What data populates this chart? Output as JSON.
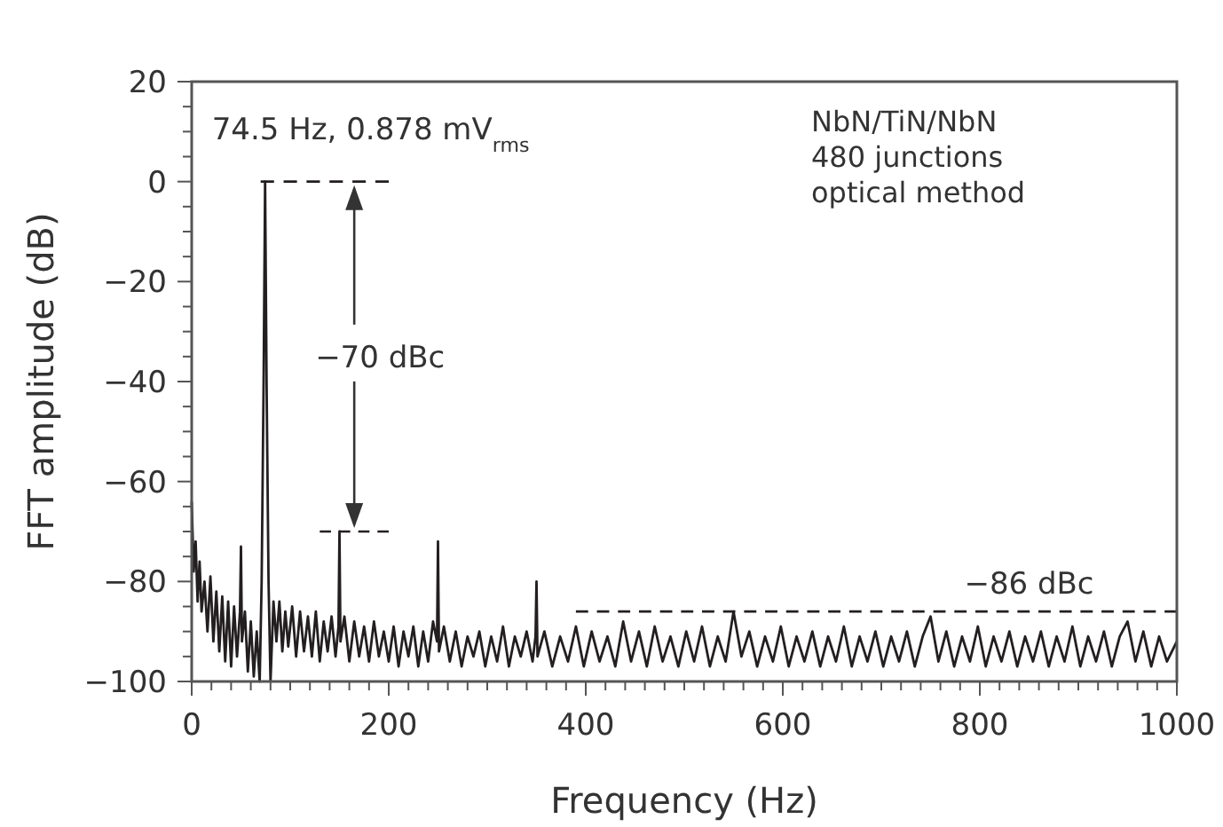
{
  "chart_data": {
    "type": "line",
    "xlabel": "Frequency (Hz)",
    "ylabel": "FFT amplitude (dB)",
    "xlim": [
      0,
      1000
    ],
    "ylim": [
      -100,
      20
    ],
    "xticks": [
      0,
      {
        "value": 20,
        "label": null
      },
      {
        "value": 40,
        "label": null
      },
      {
        "value": 60,
        "label": null
      },
      {
        "value": 80,
        "label": null
      },
      {
        "value": 100,
        "label": null
      },
      {
        "value": 120,
        "label": null
      },
      {
        "value": 140,
        "label": null
      },
      {
        "value": 160,
        "label": null
      },
      {
        "value": 180,
        "label": null
      },
      200,
      {
        "value": 220,
        "label": null
      },
      {
        "value": 240,
        "label": null
      },
      {
        "value": 260,
        "label": null
      },
      {
        "value": 280,
        "label": null
      },
      {
        "value": 300,
        "label": null
      },
      {
        "value": 320,
        "label": null
      },
      {
        "value": 340,
        "label": null
      },
      {
        "value": 360,
        "label": null
      },
      {
        "value": 380,
        "label": null
      },
      400,
      {
        "value": 420,
        "label": null
      },
      {
        "value": 440,
        "label": null
      },
      {
        "value": 460,
        "label": null
      },
      {
        "value": 480,
        "label": null
      },
      {
        "value": 500,
        "label": null
      },
      {
        "value": 520,
        "label": null
      },
      {
        "value": 540,
        "label": null
      },
      {
        "value": 560,
        "label": null
      },
      {
        "value": 580,
        "label": null
      },
      600,
      {
        "value": 620,
        "label": null
      },
      {
        "value": 640,
        "label": null
      },
      {
        "value": 660,
        "label": null
      },
      {
        "value": 680,
        "label": null
      },
      {
        "value": 700,
        "label": null
      },
      {
        "value": 720,
        "label": null
      },
      {
        "value": 740,
        "label": null
      },
      {
        "value": 760,
        "label": null
      },
      {
        "value": 780,
        "label": null
      },
      800,
      {
        "value": 820,
        "label": null
      },
      {
        "value": 840,
        "label": null
      },
      {
        "value": 860,
        "label": null
      },
      {
        "value": 880,
        "label": null
      },
      {
        "value": 900,
        "label": null
      },
      {
        "value": 920,
        "label": null
      },
      {
        "value": 940,
        "label": null
      },
      {
        "value": 960,
        "label": null
      },
      {
        "value": 980,
        "label": null
      },
      1000
    ],
    "yticks": [
      {
        "value": -100,
        "label": "−100"
      },
      {
        "value": -95,
        "label": null
      },
      {
        "value": -90,
        "label": null
      },
      {
        "value": -85,
        "label": null
      },
      {
        "value": -80,
        "label": "−80"
      },
      {
        "value": -75,
        "label": null
      },
      {
        "value": -70,
        "label": null
      },
      {
        "value": -65,
        "label": null
      },
      {
        "value": -60,
        "label": "−60"
      },
      {
        "value": -55,
        "label": null
      },
      {
        "value": -50,
        "label": null
      },
      {
        "value": -45,
        "label": null
      },
      {
        "value": -40,
        "label": "−40"
      },
      {
        "value": -35,
        "label": null
      },
      {
        "value": -30,
        "label": null
      },
      {
        "value": -25,
        "label": null
      },
      {
        "value": -20,
        "label": "−20"
      },
      {
        "value": -15,
        "label": null
      },
      {
        "value": -10,
        "label": null
      },
      {
        "value": -5,
        "label": null
      },
      0,
      {
        "value": 5,
        "label": null
      },
      {
        "value": 10,
        "label": null
      },
      {
        "value": 15,
        "label": null
      },
      20
    ],
    "series": [
      {
        "color": "#231f20",
        "x": [
          0,
          2,
          4,
          6,
          8,
          10,
          13,
          16,
          19,
          22,
          25,
          28,
          31,
          34,
          37,
          40,
          43,
          46,
          49,
          50,
          51,
          54,
          57,
          60,
          63,
          66,
          69,
          71,
          73,
          74.5,
          76,
          78,
          80,
          83,
          86,
          89,
          92,
          95,
          98,
          102,
          106,
          110,
          114,
          118,
          122,
          126,
          130,
          134,
          138,
          142,
          146,
          149,
          150,
          151,
          155,
          160,
          165,
          170,
          175,
          180,
          185,
          190,
          195,
          200,
          205,
          210,
          215,
          220,
          225,
          230,
          235,
          240,
          245,
          249,
          250,
          251,
          256,
          262,
          268,
          274,
          280,
          286,
          292,
          298,
          304,
          310,
          316,
          322,
          328,
          334,
          340,
          346,
          349,
          350,
          351,
          358,
          366,
          374,
          382,
          390,
          398,
          406,
          414,
          422,
          430,
          438,
          446,
          454,
          462,
          470,
          478,
          486,
          494,
          502,
          510,
          518,
          526,
          534,
          542,
          550,
          558,
          566,
          574,
          582,
          590,
          598,
          606,
          614,
          622,
          630,
          638,
          646,
          654,
          662,
          670,
          678,
          686,
          694,
          702,
          710,
          718,
          726,
          734,
          742,
          750,
          758,
          766,
          774,
          782,
          790,
          798,
          806,
          814,
          822,
          830,
          838,
          846,
          854,
          862,
          870,
          878,
          886,
          894,
          902,
          910,
          918,
          926,
          934,
          942,
          950,
          958,
          966,
          974,
          982,
          990,
          1000
        ],
        "values": [
          -64,
          -78,
          -72,
          -84,
          -76,
          -86,
          -80,
          -90,
          -79,
          -92,
          -82,
          -94,
          -83,
          -96,
          -84,
          -97,
          -85,
          -95,
          -86,
          -73,
          -92,
          -86,
          -98,
          -88,
          -99,
          -90,
          -100,
          -80,
          -40,
          0,
          -40,
          -80,
          -100,
          -84,
          -92,
          -84,
          -94,
          -86,
          -93,
          -85,
          -95,
          -86,
          -94,
          -87,
          -95,
          -86,
          -96,
          -88,
          -94,
          -87,
          -95,
          -89,
          -70,
          -92,
          -87,
          -96,
          -88,
          -95,
          -89,
          -96,
          -88,
          -95,
          -90,
          -96,
          -89,
          -97,
          -90,
          -95,
          -89,
          -97,
          -90,
          -96,
          -88,
          -92,
          -72,
          -94,
          -89,
          -96,
          -90,
          -97,
          -91,
          -95,
          -90,
          -97,
          -91,
          -96,
          -89,
          -97,
          -91,
          -95,
          -90,
          -96,
          -91,
          -80,
          -95,
          -90,
          -97,
          -91,
          -96,
          -89,
          -97,
          -90,
          -96,
          -91,
          -97,
          -88,
          -96,
          -90,
          -97,
          -89,
          -96,
          -91,
          -97,
          -90,
          -96,
          -89,
          -97,
          -91,
          -96,
          -86,
          -95,
          -90,
          -97,
          -91,
          -96,
          -89,
          -97,
          -91,
          -96,
          -90,
          -97,
          -91,
          -96,
          -89,
          -97,
          -91,
          -96,
          -90,
          -97,
          -91,
          -96,
          -90,
          -97,
          -91,
          -87,
          -96,
          -90,
          -97,
          -91,
          -96,
          -89,
          -97,
          -91,
          -96,
          -90,
          -97,
          -91,
          -96,
          -90,
          -97,
          -91,
          -96,
          -89,
          -97,
          -91,
          -96,
          -90,
          -97,
          -91,
          -88,
          -96,
          -90,
          -97,
          -91,
          -96,
          -92
        ]
      },
      {
        "color": "#231f20",
        "line_style": "dashed",
        "x": [
          70,
          200
        ],
        "values": [
          0,
          0
        ]
      },
      {
        "color": "#231f20",
        "line_style": "dashed",
        "x": [
          130,
          200
        ],
        "values": [
          -70,
          -70
        ]
      },
      {
        "color": "#231f20",
        "line_style": "dashed",
        "x": [
          390,
          1000
        ],
        "values": [
          -86,
          -86
        ]
      }
    ],
    "annotations": [
      {
        "text": "74.5 Hz, 0.878 mV$_{rms}$",
        "x": 74.5,
        "y": 0
      },
      {
        "text": "−70 dBc",
        "x": 165,
        "y": -70
      },
      {
        "text": "−86 dBc",
        "x": 850,
        "y": -86
      },
      "NbN/TiN/NbN",
      "480 junctions",
      "optical method"
    ]
  }
}
